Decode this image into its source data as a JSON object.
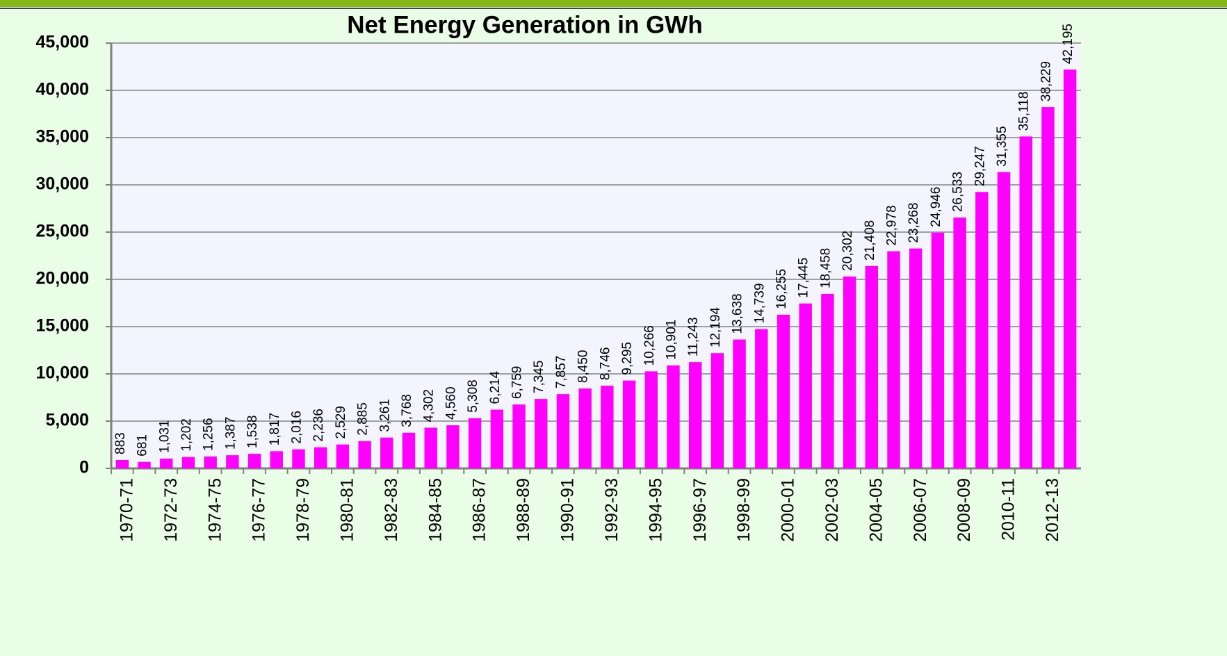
{
  "chart_data": {
    "type": "bar",
    "title": "Net Energy Generation in GWh",
    "categories": [
      "1970-71",
      null,
      "1972-73",
      null,
      "1974-75",
      null,
      "1976-77",
      null,
      "1978-79",
      null,
      "1980-81",
      null,
      "1982-83",
      null,
      "1984-85",
      null,
      "1986-87",
      null,
      "1988-89",
      null,
      "1990-91",
      null,
      "1992-93",
      null,
      "1994-95",
      null,
      "1996-97",
      null,
      "1998-99",
      null,
      "2000-01",
      null,
      "2002-03",
      null,
      "2004-05",
      null,
      "2006-07",
      null,
      "2008-09",
      null,
      "2010-11",
      null,
      "2012-13",
      null
    ],
    "values": [
      883,
      681,
      1031,
      1202,
      1256,
      1387,
      1538,
      1817,
      2016,
      2236,
      2529,
      2885,
      3261,
      3768,
      4302,
      4560,
      5308,
      6214,
      6759,
      7345,
      7857,
      8450,
      8746,
      9295,
      10266,
      10901,
      11243,
      12194,
      13638,
      14739,
      16255,
      17445,
      18458,
      20302,
      21408,
      22978,
      23268,
      24946,
      26533,
      29247,
      31355,
      35118,
      38229,
      42195
    ],
    "value_labels": [
      "883",
      "681",
      "1,031",
      "1,202",
      "1,256",
      "1,387",
      "1,538",
      "1,817",
      "2,016",
      "2,236",
      "2,529",
      "2,885",
      "3,261",
      "3,768",
      "4,302",
      "4,560",
      "5,308",
      "6,214",
      "6,759",
      "7,345",
      "7,857",
      "8,450",
      "8,746",
      "9,295",
      "10,266",
      "10,901",
      "11,243",
      "12,194",
      "13,638",
      "14,739",
      "16,255",
      "17,445",
      "18,458",
      "20,302",
      "21,408",
      "22,978",
      "23,268",
      "24,946",
      "26,533",
      "29,247",
      "31,355",
      "35,118",
      "38,229",
      "42,195"
    ],
    "color": "#ff00ff",
    "ylim": [
      0,
      45000
    ],
    "yticks": [
      0,
      {
        "value": 5000,
        "label": "5,000"
      },
      {
        "value": 10000,
        "label": "10,000"
      },
      {
        "value": 15000,
        "label": "15,000"
      },
      {
        "value": 20000,
        "label": "20,000"
      },
      {
        "value": 25000,
        "label": "25,000"
      },
      {
        "value": 30000,
        "label": "30,000"
      },
      {
        "value": 35000,
        "label": "35,000"
      },
      {
        "value": 40000,
        "label": "40,000"
      },
      {
        "value": 45000,
        "label": "45,000"
      }
    ],
    "grid": true
  }
}
